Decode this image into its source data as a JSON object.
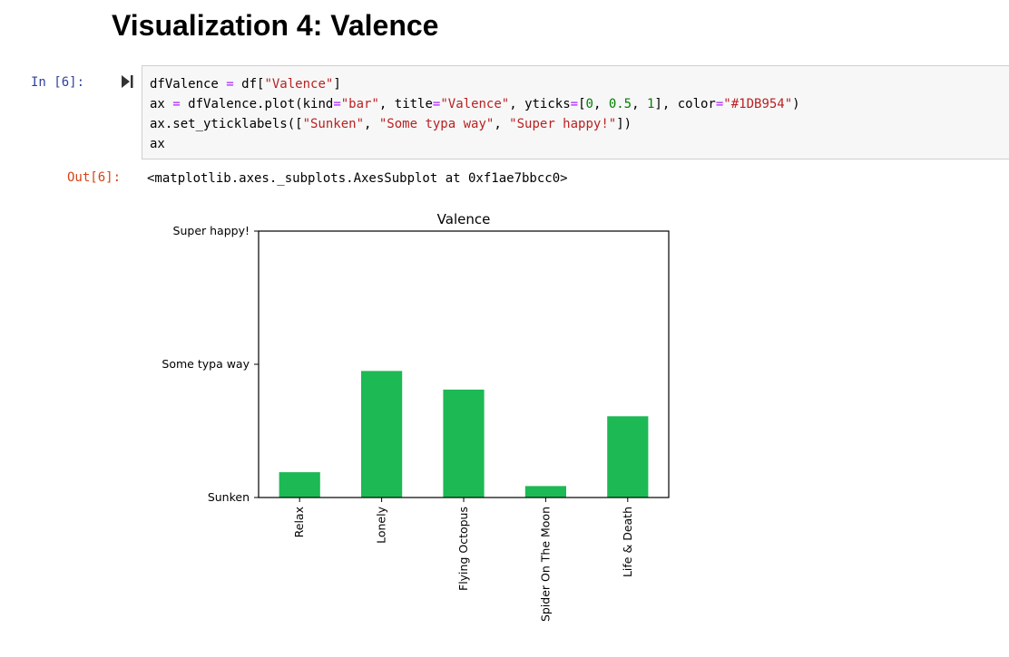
{
  "notebook": {
    "heading": "Visualization 4: Valence",
    "in_prompt": "In [6]:",
    "out_prompt": "Out[6]:",
    "output_repr": "<matplotlib.axes._subplots.AxesSubplot at 0xf1ae7bbcc0>",
    "code_lines": [
      [
        {
          "t": "dfValence "
        },
        {
          "t": "=",
          "c": "op"
        },
        {
          "t": " df["
        },
        {
          "t": "\"Valence\"",
          "c": "str"
        },
        {
          "t": "]"
        }
      ],
      [
        {
          "t": "ax "
        },
        {
          "t": "=",
          "c": "op"
        },
        {
          "t": " dfValence.plot(kind"
        },
        {
          "t": "=",
          "c": "op"
        },
        {
          "t": "\"bar\"",
          "c": "str"
        },
        {
          "t": ", title"
        },
        {
          "t": "=",
          "c": "op"
        },
        {
          "t": "\"Valence\"",
          "c": "str"
        },
        {
          "t": ", yticks"
        },
        {
          "t": "=",
          "c": "op"
        },
        {
          "t": "["
        },
        {
          "t": "0",
          "c": "num"
        },
        {
          "t": ", "
        },
        {
          "t": "0.5",
          "c": "num"
        },
        {
          "t": ", "
        },
        {
          "t": "1",
          "c": "num"
        },
        {
          "t": "], color"
        },
        {
          "t": "=",
          "c": "op"
        },
        {
          "t": "\"#1DB954\"",
          "c": "str"
        },
        {
          "t": ")"
        }
      ],
      [
        {
          "t": "ax.set_yticklabels(["
        },
        {
          "t": "\"Sunken\"",
          "c": "str"
        },
        {
          "t": ", "
        },
        {
          "t": "\"Some typa way\"",
          "c": "str"
        },
        {
          "t": ", "
        },
        {
          "t": "\"Super happy!\"",
          "c": "str"
        },
        {
          "t": "])"
        }
      ],
      [
        {
          "t": "ax"
        }
      ]
    ]
  },
  "chart_data": {
    "type": "bar",
    "title": "Valence",
    "categories": [
      "Relax",
      "Lonely",
      "Flying Octopus",
      "Spider On The Moon",
      "Life & Death"
    ],
    "values": [
      0.095,
      0.475,
      0.405,
      0.043,
      0.305
    ],
    "yticks": [
      0,
      0.5,
      1
    ],
    "yticklabels": [
      "Sunken",
      "Some typa way",
      "Super happy!"
    ],
    "ylim": [
      0,
      1
    ],
    "color": "#1DB954",
    "grid": false,
    "legend": false
  }
}
